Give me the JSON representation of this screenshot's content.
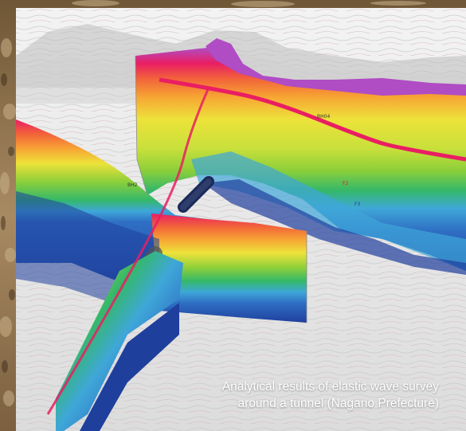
{
  "caption": {
    "line1": "Analytical results of elastic wave survey",
    "line2": "around a tunnel (Nagano Prefecture)"
  },
  "visual": {
    "subject": "3D geophysical cross-sections over a contour terrain model",
    "palette": [
      "#1f3f9c",
      "#2f6fc4",
      "#3fa7d8",
      "#34b86a",
      "#8ccf3a",
      "#ede23a",
      "#f7a534",
      "#f2643a",
      "#e91e63",
      "#b04cc4"
    ]
  }
}
